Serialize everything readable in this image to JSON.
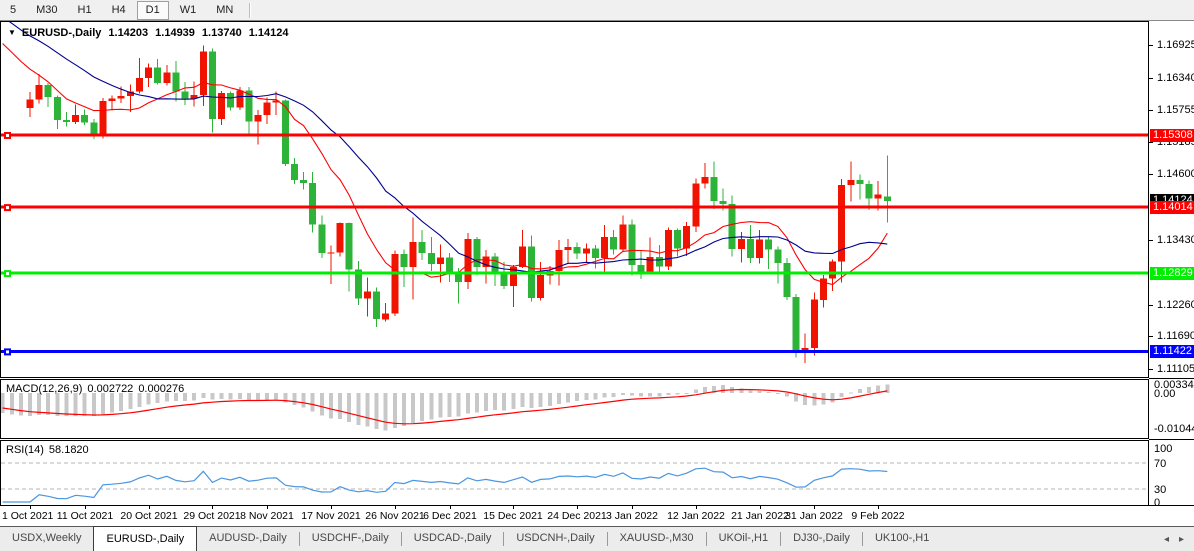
{
  "toolbar": {
    "timeframes": [
      "5",
      "M30",
      "H1",
      "H4",
      "D1",
      "W1",
      "MN"
    ],
    "active_timeframe": "D1"
  },
  "chart_header": {
    "symbol": "EURUSD-,Daily",
    "open": "1.14203",
    "high": "1.14939",
    "low": "1.13740",
    "close": "1.14124"
  },
  "macd": {
    "name": "MACD(12,26,9)",
    "main_value": "0.002722",
    "signal_value": "0.000276",
    "axis_labels": [
      "0.003348",
      "0.00",
      "-0.01044"
    ]
  },
  "rsi": {
    "name": "RSI(14)",
    "value": "58.1820",
    "axis_labels": [
      "100",
      "70",
      "30",
      "0"
    ]
  },
  "price_axis": {
    "ticks": [
      "1.16925",
      "1.16340",
      "1.15755",
      "1.15185",
      "1.14600",
      "1.13430",
      "1.12260",
      "1.11690",
      "1.11105"
    ],
    "current_price_label": {
      "text": "1.14124",
      "bg": "#000000",
      "fg": "#ffffff"
    }
  },
  "date_axis": [
    {
      "label": "1 Oct 2021",
      "index": 0
    },
    {
      "label": "11 Oct 2021",
      "index": 6
    },
    {
      "label": "20 Oct 2021",
      "index": 13
    },
    {
      "label": "29 Oct 2021",
      "index": 20
    },
    {
      "label": "8 Nov 2021",
      "index": 26
    },
    {
      "label": "17 Nov 2021",
      "index": 33
    },
    {
      "label": "26 Nov 2021",
      "index": 40
    },
    {
      "label": "6 Dec 2021",
      "index": 46
    },
    {
      "label": "15 Dec 2021",
      "index": 53
    },
    {
      "label": "24 Dec 2021",
      "index": 60
    },
    {
      "label": "3 Jan 2022",
      "index": 66
    },
    {
      "label": "12 Jan 2022",
      "index": 73
    },
    {
      "label": "21 Jan 2022",
      "index": 80
    },
    {
      "label": "31 Jan 2022",
      "index": 86
    },
    {
      "label": "9 Feb 2022",
      "index": 93
    }
  ],
  "tabs": {
    "items": [
      "USDX,Weekly",
      "EURUSD-,Daily",
      "AUDUSD-,Daily",
      "USDCHF-,Daily",
      "USDCAD-,Daily",
      "USDCNH-,Daily",
      "XAUUSD-,M30",
      "UKOil-,H1",
      "DJ30-,Daily",
      "UK100-,H1"
    ],
    "active_index": 1,
    "nav_left": "◂",
    "nav_right": "▸"
  },
  "colors": {
    "bull": "#f01400",
    "bear": "#2eb339",
    "ma_fast": "#ff0000",
    "ma_slow": "#000090",
    "macd_hist": "#c8c8c8",
    "macd_signal": "#ff0000",
    "rsi_line": "#4a96e0",
    "level_dash": "#b4b4b4"
  },
  "chart_data": {
    "type": "candlestick",
    "symbol": "EURUSD",
    "timeframe": "Daily",
    "title": "EURUSD-,Daily 1.14203 1.14939 1.13740 1.14124",
    "y_axis_range": [
      1.1096,
      1.1729
    ],
    "grid": false,
    "hlines": [
      {
        "price": 1.15308,
        "label": "1.15308",
        "color": "#ff0000",
        "text_color": "#ffffff"
      },
      {
        "price": 1.14014,
        "label": "1.14014",
        "color": "#ff0000",
        "text_color": "#ffffff"
      },
      {
        "price": 1.12829,
        "label": "1.12829",
        "color": "#00ee00",
        "text_color": "#ffffff"
      },
      {
        "price": 1.11422,
        "label": "1.11422",
        "color": "#0000ff",
        "text_color": "#ffffff"
      }
    ],
    "overlays": [
      {
        "name": "ma-fast",
        "type": "sma",
        "period": 10,
        "color": "#ff0000"
      },
      {
        "name": "ma-slow",
        "type": "sma",
        "period": 20,
        "color": "#000090"
      }
    ],
    "indicators": [
      {
        "name": "MACD",
        "params": [
          12,
          26,
          9
        ],
        "last_main": 0.002722,
        "last_signal": 0.000276,
        "scale": [
          0.003348,
          0.0,
          -0.01044
        ]
      },
      {
        "name": "RSI",
        "params": [
          14
        ],
        "last_value": 58.182,
        "levels": [
          70,
          30
        ],
        "scale": [
          100,
          70,
          30,
          0
        ]
      }
    ],
    "candles": {
      "dates": [
        "2021-10-01",
        "2021-10-04",
        "2021-10-05",
        "2021-10-06",
        "2021-10-07",
        "2021-10-08",
        "2021-10-11",
        "2021-10-12",
        "2021-10-13",
        "2021-10-14",
        "2021-10-15",
        "2021-10-18",
        "2021-10-19",
        "2021-10-20",
        "2021-10-21",
        "2021-10-22",
        "2021-10-25",
        "2021-10-26",
        "2021-10-27",
        "2021-10-28",
        "2021-10-29",
        "2021-11-01",
        "2021-11-02",
        "2021-11-03",
        "2021-11-04",
        "2021-11-05",
        "2021-11-08",
        "2021-11-09",
        "2021-11-10",
        "2021-11-11",
        "2021-11-12",
        "2021-11-15",
        "2021-11-16",
        "2021-11-17",
        "2021-11-18",
        "2021-11-19",
        "2021-11-22",
        "2021-11-23",
        "2021-11-24",
        "2021-11-25",
        "2021-11-26",
        "2021-11-29",
        "2021-11-30",
        "2021-12-01",
        "2021-12-02",
        "2021-12-03",
        "2021-12-06",
        "2021-12-07",
        "2021-12-08",
        "2021-12-09",
        "2021-12-10",
        "2021-12-13",
        "2021-12-14",
        "2021-12-15",
        "2021-12-16",
        "2021-12-17",
        "2021-12-20",
        "2021-12-21",
        "2021-12-22",
        "2021-12-23",
        "2021-12-24",
        "2021-12-27",
        "2021-12-28",
        "2021-12-29",
        "2021-12-30",
        "2021-12-31",
        "2022-01-03",
        "2022-01-04",
        "2022-01-05",
        "2022-01-06",
        "2022-01-07",
        "2022-01-10",
        "2022-01-11",
        "2022-01-12",
        "2022-01-13",
        "2022-01-14",
        "2022-01-17",
        "2022-01-18",
        "2022-01-19",
        "2022-01-20",
        "2022-01-21",
        "2022-01-24",
        "2022-01-25",
        "2022-01-26",
        "2022-01-27",
        "2022-01-28",
        "2022-01-31",
        "2022-02-01",
        "2022-02-02",
        "2022-02-03",
        "2022-02-04",
        "2022-02-07",
        "2022-02-08",
        "2022-02-09",
        "2022-02-10"
      ],
      "ohlc": [
        [
          1.1579,
          1.1608,
          1.1563,
          1.1595
        ],
        [
          1.1595,
          1.164,
          1.1587,
          1.1621
        ],
        [
          1.1621,
          1.1624,
          1.1581,
          1.1599
        ],
        [
          1.1599,
          1.1602,
          1.1542,
          1.1558
        ],
        [
          1.1558,
          1.1572,
          1.1546,
          1.1554
        ],
        [
          1.1554,
          1.1586,
          1.1551,
          1.1567
        ],
        [
          1.1567,
          1.1577,
          1.1549,
          1.1553
        ],
        [
          1.1553,
          1.156,
          1.1524,
          1.153
        ],
        [
          1.153,
          1.1597,
          1.1525,
          1.1592
        ],
        [
          1.1592,
          1.1602,
          1.1575,
          1.1596
        ],
        [
          1.1596,
          1.1618,
          1.1588,
          1.1601
        ],
        [
          1.1601,
          1.1622,
          1.1572,
          1.1609
        ],
        [
          1.1609,
          1.1669,
          1.1605,
          1.1633
        ],
        [
          1.1633,
          1.1659,
          1.1617,
          1.1652
        ],
        [
          1.1652,
          1.1667,
          1.1622,
          1.1624
        ],
        [
          1.1624,
          1.1657,
          1.162,
          1.1643
        ],
        [
          1.1643,
          1.1664,
          1.1591,
          1.1609
        ],
        [
          1.1609,
          1.1626,
          1.1585,
          1.1596
        ],
        [
          1.1596,
          1.1627,
          1.1582,
          1.1603
        ],
        [
          1.1603,
          1.1692,
          1.1583,
          1.1681
        ],
        [
          1.1681,
          1.1686,
          1.1535,
          1.156
        ],
        [
          1.156,
          1.161,
          1.1549,
          1.1606
        ],
        [
          1.1606,
          1.1609,
          1.1575,
          1.158
        ],
        [
          1.158,
          1.1617,
          1.1576,
          1.1611
        ],
        [
          1.1611,
          1.1617,
          1.1528,
          1.1555
        ],
        [
          1.1555,
          1.1576,
          1.1514,
          1.1567
        ],
        [
          1.1567,
          1.1598,
          1.1551,
          1.1589
        ],
        [
          1.1589,
          1.1609,
          1.1567,
          1.1593
        ],
        [
          1.1593,
          1.1595,
          1.1475,
          1.1479
        ],
        [
          1.1479,
          1.149,
          1.1443,
          1.145
        ],
        [
          1.145,
          1.1464,
          1.1433,
          1.1445
        ],
        [
          1.1445,
          1.1464,
          1.1356,
          1.137
        ],
        [
          1.137,
          1.1386,
          1.131,
          1.1319
        ],
        [
          1.1319,
          1.1332,
          1.1263,
          1.132
        ],
        [
          1.132,
          1.1374,
          1.1313,
          1.1373
        ],
        [
          1.1373,
          1.1374,
          1.125,
          1.1289
        ],
        [
          1.1289,
          1.1305,
          1.1226,
          1.1237
        ],
        [
          1.1237,
          1.1275,
          1.1205,
          1.125
        ],
        [
          1.125,
          1.1257,
          1.1186,
          1.12
        ],
        [
          1.12,
          1.1229,
          1.1196,
          1.121
        ],
        [
          1.121,
          1.1323,
          1.1206,
          1.1317
        ],
        [
          1.1317,
          1.1325,
          1.1258,
          1.1294
        ],
        [
          1.1294,
          1.1383,
          1.1235,
          1.1339
        ],
        [
          1.1339,
          1.136,
          1.1306,
          1.1319
        ],
        [
          1.1319,
          1.1348,
          1.1287,
          1.1299
        ],
        [
          1.1299,
          1.1334,
          1.1266,
          1.1311
        ],
        [
          1.1311,
          1.1319,
          1.1267,
          1.1285
        ],
        [
          1.1285,
          1.1292,
          1.1228,
          1.1267
        ],
        [
          1.1267,
          1.1355,
          1.1254,
          1.1344
        ],
        [
          1.1344,
          1.1348,
          1.1279,
          1.1294
        ],
        [
          1.1294,
          1.1324,
          1.1264,
          1.1313
        ],
        [
          1.1313,
          1.1319,
          1.126,
          1.1284
        ],
        [
          1.1284,
          1.1303,
          1.1254,
          1.126
        ],
        [
          1.126,
          1.1297,
          1.1222,
          1.1294
        ],
        [
          1.1294,
          1.136,
          1.1292,
          1.1331
        ],
        [
          1.1331,
          1.135,
          1.1232,
          1.1238
        ],
        [
          1.1238,
          1.1303,
          1.1234,
          1.1279
        ],
        [
          1.1279,
          1.1296,
          1.1262,
          1.1287
        ],
        [
          1.1287,
          1.1342,
          1.1261,
          1.1324
        ],
        [
          1.1324,
          1.1344,
          1.13,
          1.133
        ],
        [
          1.133,
          1.1338,
          1.1308,
          1.1318
        ],
        [
          1.1318,
          1.1336,
          1.1302,
          1.1327
        ],
        [
          1.1327,
          1.1333,
          1.1291,
          1.131
        ],
        [
          1.131,
          1.1369,
          1.1286,
          1.1348
        ],
        [
          1.1348,
          1.136,
          1.1316,
          1.1325
        ],
        [
          1.1325,
          1.1386,
          1.1321,
          1.137
        ],
        [
          1.137,
          1.1379,
          1.1279,
          1.1297
        ],
        [
          1.1297,
          1.1323,
          1.1272,
          1.1286
        ],
        [
          1.1286,
          1.1347,
          1.128,
          1.1312
        ],
        [
          1.1312,
          1.1333,
          1.1285,
          1.1295
        ],
        [
          1.1295,
          1.1365,
          1.1288,
          1.136
        ],
        [
          1.136,
          1.1363,
          1.1313,
          1.1327
        ],
        [
          1.1327,
          1.1375,
          1.1314,
          1.1367
        ],
        [
          1.1367,
          1.1453,
          1.1357,
          1.1444
        ],
        [
          1.1444,
          1.1481,
          1.1435,
          1.1455
        ],
        [
          1.1455,
          1.1483,
          1.1398,
          1.1412
        ],
        [
          1.1412,
          1.1435,
          1.1395,
          1.1407
        ],
        [
          1.1407,
          1.1422,
          1.1313,
          1.1326
        ],
        [
          1.1326,
          1.1357,
          1.1302,
          1.1344
        ],
        [
          1.1344,
          1.1369,
          1.1301,
          1.131
        ],
        [
          1.131,
          1.136,
          1.13,
          1.1343
        ],
        [
          1.1343,
          1.1349,
          1.129,
          1.1325
        ],
        [
          1.1325,
          1.1331,
          1.1264,
          1.1301
        ],
        [
          1.1301,
          1.131,
          1.1235,
          1.124
        ],
        [
          1.124,
          1.1245,
          1.1131,
          1.1144
        ],
        [
          1.1144,
          1.1174,
          1.1121,
          1.1148
        ],
        [
          1.1148,
          1.1248,
          1.1135,
          1.1235
        ],
        [
          1.1235,
          1.1279,
          1.1221,
          1.1273
        ],
        [
          1.1273,
          1.1307,
          1.1251,
          1.1304
        ],
        [
          1.1304,
          1.1452,
          1.1266,
          1.1441
        ],
        [
          1.1441,
          1.1483,
          1.1411,
          1.145
        ],
        [
          1.145,
          1.146,
          1.1415,
          1.1443
        ],
        [
          1.1443,
          1.1449,
          1.1396,
          1.1417
        ],
        [
          1.1417,
          1.1448,
          1.1395,
          1.1424
        ],
        [
          1.14203,
          1.14939,
          1.1374,
          1.14124
        ]
      ]
    }
  }
}
